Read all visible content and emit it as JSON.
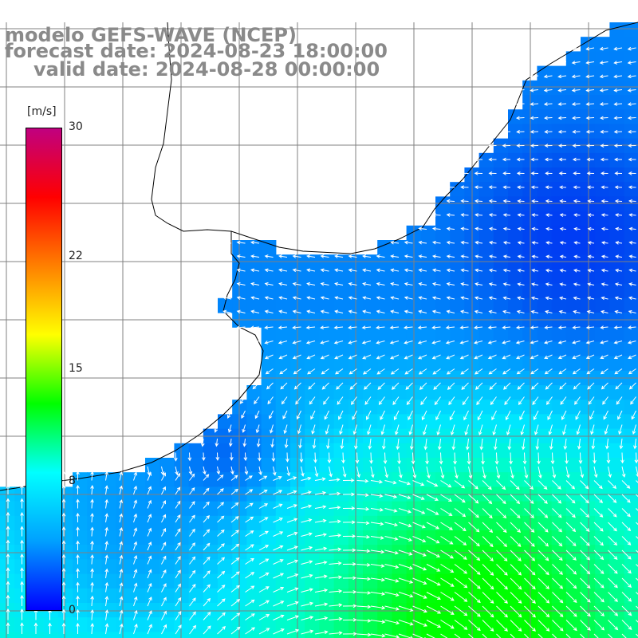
{
  "header": {
    "model": "modelo GEFS-WAVE (NCEP)",
    "forecast": "forecast date: 2024-08-23 18:00:00",
    "valid": "valid date: 2024-08-28 00:00:00"
  },
  "colorbar": {
    "unit": "[m/s]",
    "ticks": [
      {
        "label": "30",
        "value": 30
      },
      {
        "label": "22",
        "value": 22
      },
      {
        "label": "15",
        "value": 15
      },
      {
        "label": "8",
        "value": 8
      },
      {
        "label": "0",
        "value": 0
      }
    ],
    "min": 0,
    "max": 30,
    "stops": [
      "#0000ff",
      "#00a0ff",
      "#00ffff",
      "#00ff00",
      "#ffff00",
      "#ff8000",
      "#ff0000",
      "#c00080"
    ]
  },
  "colors": {
    "ocean_low": "#0050e8",
    "ocean_mid": "#00c8ff",
    "ocean_high": "#00ff80",
    "land": "#ffffff",
    "grid": "#808080",
    "coast": "#000000",
    "arrow": "#ffffff"
  }
}
